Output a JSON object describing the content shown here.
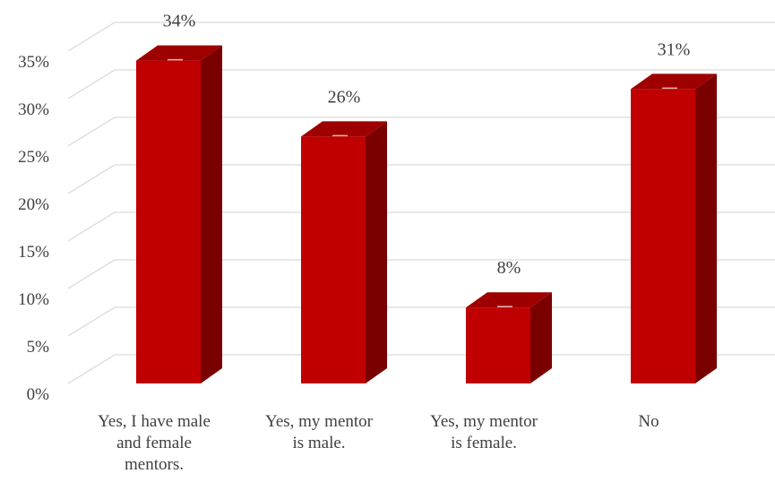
{
  "chart_data": {
    "type": "bar",
    "style": "3d-column",
    "categories": [
      [
        "Yes, I have male",
        "and female",
        "mentors."
      ],
      [
        "Yes, my mentor",
        "is male."
      ],
      [
        "Yes, my mentor",
        "is female."
      ],
      [
        "No"
      ]
    ],
    "values": [
      34,
      26,
      8,
      31
    ],
    "data_labels": [
      "34%",
      "26%",
      "8%",
      "31%"
    ],
    "ylim": [
      0,
      35
    ],
    "y_ticks": [
      0,
      5,
      10,
      15,
      20,
      25,
      30,
      35
    ],
    "y_tick_labels": [
      "0%",
      "5%",
      "10%",
      "15%",
      "20%",
      "25%",
      "30%",
      "35%"
    ],
    "grid": true,
    "legend": "none",
    "colors": {
      "bar_front": "#c00000",
      "bar_side": "#7a0000",
      "bar_top": "#9e0000",
      "grid": "#d9d9d9",
      "text": "#404040"
    }
  }
}
